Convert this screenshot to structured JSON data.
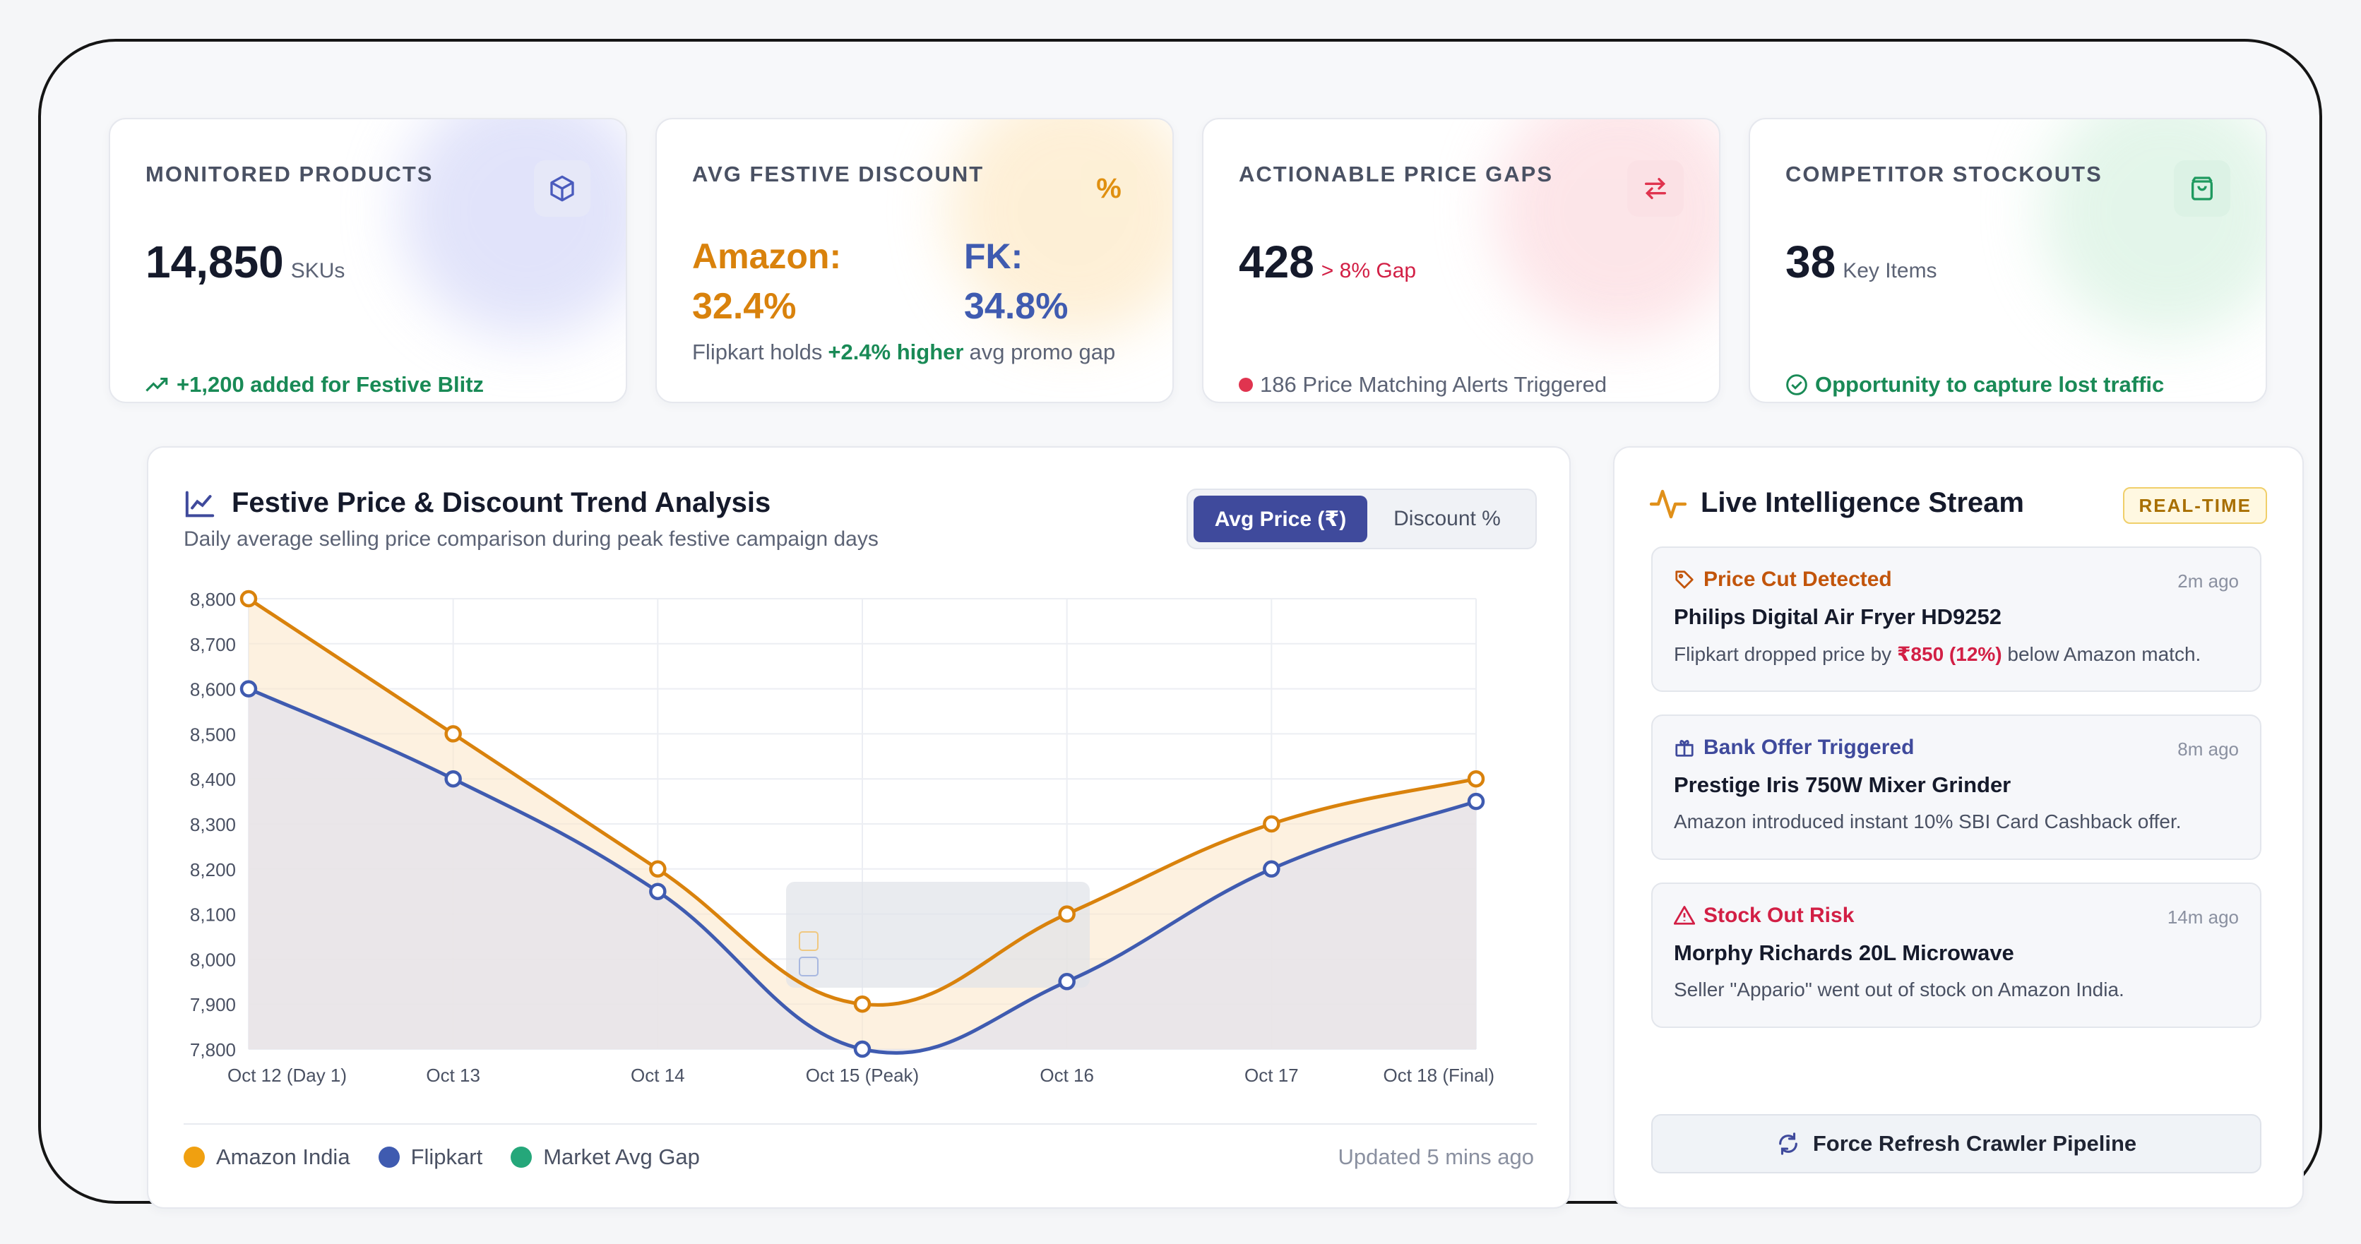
{
  "kpis": [
    {
      "title": "MONITORED PRODUCTS",
      "icon": "cube-icon",
      "value": "14,850",
      "unit": "SKUs",
      "sub": "+1,200 added for Festive Blitz",
      "accent": "#4a5bbd"
    },
    {
      "title": "AVG FESTIVE DISCOUNT",
      "icon": "percent-icon",
      "amazon_label": "Amazon:",
      "amazon_value": "32.4%",
      "fk_label": "FK:",
      "fk_value": "34.8%",
      "sub_prefix": "Flipkart holds",
      "sub_highlight": "+2.4% higher",
      "sub_suffix": "avg promo gap",
      "accent": "#f0a010"
    },
    {
      "title": "ACTIONABLE PRICE GAPS",
      "icon": "swap-arrows-icon",
      "value": "428",
      "gap": "> 8% Gap",
      "sub": "186 Price Matching Alerts Triggered",
      "accent": "#e0344f"
    },
    {
      "title": "COMPETITOR STOCKOUTS",
      "icon": "shopping-bag-icon",
      "value": "38",
      "unit": "Key Items",
      "sub": "Opportunity to capture lost traffic",
      "accent": "#1f9a5f"
    }
  ],
  "chart": {
    "title": "Festive Price & Discount Trend Analysis",
    "subtitle": "Daily average selling price comparison during peak festive campaign days",
    "toggle": {
      "active": "Avg Price (₹)",
      "inactive": "Discount %"
    },
    "legend": [
      {
        "name": "Amazon India",
        "color": "#f0a010"
      },
      {
        "name": "Flipkart",
        "color": "#3f5bb0"
      },
      {
        "name": "Market Avg Gap",
        "color": "#25a77a"
      }
    ],
    "updated": "Updated 5 mins ago"
  },
  "chart_data": {
    "type": "line",
    "categories": [
      "Oct 12 (Day 1)",
      "Oct 13",
      "Oct 14",
      "Oct 15 (Peak)",
      "Oct 16",
      "Oct 17",
      "Oct 18 (Final)"
    ],
    "series": [
      {
        "name": "Amazon India",
        "color": "#d9820c",
        "values": [
          8800,
          8500,
          8200,
          7900,
          8100,
          8300,
          8400
        ]
      },
      {
        "name": "Flipkart",
        "color": "#3f5bb0",
        "values": [
          8600,
          8400,
          8150,
          7800,
          7950,
          8200,
          8350
        ]
      }
    ],
    "yticks": [
      "8,800",
      "8,700",
      "8,600",
      "8,500",
      "8,400",
      "8,300",
      "8,200",
      "8,100",
      "8,000",
      "7,900",
      "7,800"
    ],
    "ylim": [
      7800,
      8800
    ],
    "grid": true
  },
  "stream": {
    "title": "Live Intelligence Stream",
    "badge": "REAL-TIME",
    "alerts": [
      {
        "type": "Price Cut Detected",
        "icon": "tag-icon",
        "color": "#c2550b",
        "time": "2m ago",
        "product": "Philips Digital Air Fryer HD9252",
        "desc_prefix": "Flipkart dropped price by",
        "desc_highlight": "₹850 (12%)",
        "desc_suffix": "below Amazon match."
      },
      {
        "type": "Bank Offer Triggered",
        "icon": "gift-icon",
        "color": "#3f4a9c",
        "time": "8m ago",
        "product": "Prestige Iris 750W Mixer Grinder",
        "desc": "Amazon introduced instant 10% SBI Card Cashback offer."
      },
      {
        "type": "Stock Out Risk",
        "icon": "warning-triangle-icon",
        "color": "#d21f45",
        "time": "14m ago",
        "product": "Morphy Richards 20L Microwave",
        "desc": "Seller \"Appario\" went out of stock on Amazon India."
      }
    ],
    "refresh_label": "Force Refresh Crawler Pipeline"
  }
}
